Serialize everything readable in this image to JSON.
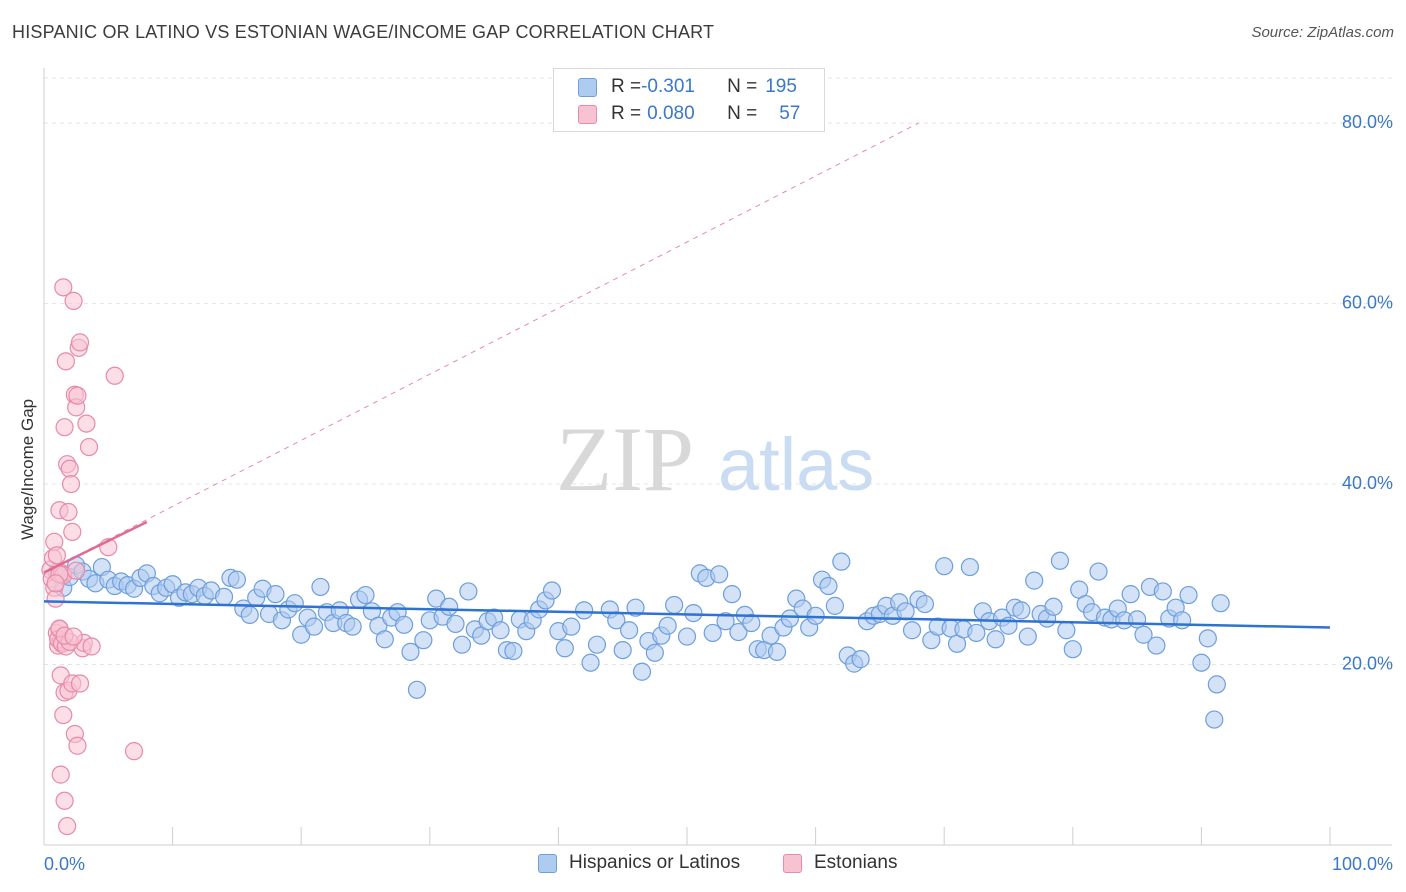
{
  "title": "HISPANIC OR LATINO VS ESTONIAN WAGE/INCOME GAP CORRELATION CHART",
  "source": "Source: ZipAtlas.com",
  "watermark": {
    "zip": "ZIP",
    "atlas": "atlas"
  },
  "legend_top": [
    {
      "r_label": "R = ",
      "r_value": "-0.301",
      "n_label": "N = ",
      "n_value": "195",
      "color": "#aecbf0",
      "border": "#6d9fdc"
    },
    {
      "r_label": "R = ",
      "r_value": "0.080",
      "n_label": "N = ",
      "n_value": "57",
      "color": "#f7c3d2",
      "border": "#e88aa8"
    }
  ],
  "legend_bottom": [
    {
      "label": "Hispanics or Latinos",
      "color": "#aecbf0",
      "border": "#6d9fdc"
    },
    {
      "label": "Estonians",
      "color": "#f7c3d2",
      "border": "#e88aa8"
    }
  ],
  "chart_data": {
    "type": "scatter",
    "title": "HISPANIC OR LATINO VS ESTONIAN WAGE/INCOME GAP CORRELATION CHART",
    "xlabel": "",
    "ylabel": "Wage/Income Gap",
    "xlim": [
      0,
      100
    ],
    "ylim": [
      0,
      85
    ],
    "x_ticks": [
      "0.0%",
      "100.0%"
    ],
    "y_ticks": [
      {
        "value": 20,
        "label": "20.0%"
      },
      {
        "value": 40,
        "label": "40.0%"
      },
      {
        "value": 60,
        "label": "60.0%"
      },
      {
        "value": 80,
        "label": "80.0%"
      }
    ],
    "grid": true,
    "legend_placement": "bottom-center",
    "series": [
      {
        "name": "Hispanics or Latinos",
        "color": "#6d9fdc",
        "fill": "#aecbf0",
        "trend": {
          "x": [
            0,
            100
          ],
          "y": [
            27.0,
            24.1
          ],
          "color": "#2e72d2"
        },
        "points": [
          [
            1,
            30.2
          ],
          [
            1.5,
            28.5
          ],
          [
            2,
            29.7
          ],
          [
            2.5,
            31
          ],
          [
            3,
            30.3
          ],
          [
            3.5,
            29.5
          ],
          [
            4,
            29
          ],
          [
            4.5,
            30.8
          ],
          [
            5,
            29.4
          ],
          [
            5.5,
            28.7
          ],
          [
            6,
            29.2
          ],
          [
            6.5,
            28.8
          ],
          [
            7,
            28.4
          ],
          [
            7.5,
            29.6
          ],
          [
            8,
            30.1
          ],
          [
            8.5,
            28.7
          ],
          [
            9,
            27.9
          ],
          [
            9.5,
            28.5
          ],
          [
            10,
            28.9
          ],
          [
            10.5,
            27.4
          ],
          [
            11,
            28
          ],
          [
            11.5,
            27.8
          ],
          [
            12,
            28.5
          ],
          [
            12.5,
            27.6
          ],
          [
            13,
            28.2
          ],
          [
            14,
            27.5
          ],
          [
            14.5,
            29.6
          ],
          [
            15,
            29.4
          ],
          [
            15.5,
            26.2
          ],
          [
            16,
            25.5
          ],
          [
            16.5,
            27.4
          ],
          [
            17,
            28.4
          ],
          [
            17.5,
            25.6
          ],
          [
            18,
            27.8
          ],
          [
            18.5,
            24.9
          ],
          [
            19,
            26.1
          ],
          [
            19.5,
            26.8
          ],
          [
            20,
            23.3
          ],
          [
            20.5,
            25.2
          ],
          [
            21,
            24.2
          ],
          [
            21.5,
            28.6
          ],
          [
            22,
            25.8
          ],
          [
            22.5,
            24.6
          ],
          [
            23,
            26
          ],
          [
            23.5,
            24.6
          ],
          [
            24,
            24.2
          ],
          [
            24.5,
            27.2
          ],
          [
            25,
            27.7
          ],
          [
            25.5,
            25.9
          ],
          [
            26,
            24.3
          ],
          [
            26.5,
            22.8
          ],
          [
            27,
            25.2
          ],
          [
            27.5,
            25.8
          ],
          [
            28,
            24.4
          ],
          [
            28.5,
            21.4
          ],
          [
            29,
            17.2
          ],
          [
            29.5,
            22.7
          ],
          [
            30,
            24.9
          ],
          [
            30.5,
            27.3
          ],
          [
            31,
            25.3
          ],
          [
            31.5,
            26.4
          ],
          [
            32,
            24.5
          ],
          [
            32.5,
            22.2
          ],
          [
            33,
            28.1
          ],
          [
            33.5,
            23.9
          ],
          [
            34,
            23.2
          ],
          [
            34.5,
            24.8
          ],
          [
            35,
            25.2
          ],
          [
            35.5,
            23.8
          ],
          [
            36,
            21.6
          ],
          [
            36.5,
            21.5
          ],
          [
            37,
            25
          ],
          [
            37.5,
            23.7
          ],
          [
            38,
            24.9
          ],
          [
            38.5,
            26.1
          ],
          [
            39,
            27.1
          ],
          [
            39.5,
            28.2
          ],
          [
            40,
            23.7
          ],
          [
            40.5,
            21.8
          ],
          [
            41,
            24.2
          ],
          [
            42,
            26
          ],
          [
            42.5,
            20.2
          ],
          [
            43,
            22.2
          ],
          [
            44,
            26.1
          ],
          [
            44.5,
            24.9
          ],
          [
            45,
            21.6
          ],
          [
            45.5,
            23.8
          ],
          [
            46,
            26.3
          ],
          [
            46.5,
            19.2
          ],
          [
            47,
            22.6
          ],
          [
            47.5,
            21.3
          ],
          [
            48,
            23.2
          ],
          [
            48.5,
            24.3
          ],
          [
            49,
            26.6
          ],
          [
            50,
            23.1
          ],
          [
            50.5,
            25.7
          ],
          [
            51,
            30.1
          ],
          [
            51.5,
            29.6
          ],
          [
            52,
            23.5
          ],
          [
            52.5,
            30
          ],
          [
            53,
            24.8
          ],
          [
            53.5,
            27.8
          ],
          [
            54,
            23.6
          ],
          [
            54.5,
            25.5
          ],
          [
            55,
            24.6
          ],
          [
            55.5,
            21.7
          ],
          [
            56,
            21.6
          ],
          [
            56.5,
            23.2
          ],
          [
            57,
            21.4
          ],
          [
            57.5,
            24.1
          ],
          [
            58,
            25.1
          ],
          [
            58.5,
            27.3
          ],
          [
            59,
            26.2
          ],
          [
            59.5,
            24.1
          ],
          [
            60,
            25.4
          ],
          [
            60.5,
            29.4
          ],
          [
            61,
            28.7
          ],
          [
            61.5,
            26.5
          ],
          [
            62,
            31.4
          ],
          [
            62.5,
            21
          ],
          [
            63,
            20.1
          ],
          [
            63.5,
            20.6
          ],
          [
            64,
            24.8
          ],
          [
            64.5,
            25.4
          ],
          [
            65,
            25.6
          ],
          [
            65.5,
            26.5
          ],
          [
            66,
            25.4
          ],
          [
            66.5,
            26.9
          ],
          [
            67,
            25.9
          ],
          [
            67.5,
            23.8
          ],
          [
            68,
            27.2
          ],
          [
            68.5,
            26.7
          ],
          [
            69,
            22.7
          ],
          [
            69.5,
            24.2
          ],
          [
            70,
            30.9
          ],
          [
            70.5,
            24
          ],
          [
            71,
            22.3
          ],
          [
            71.5,
            23.9
          ],
          [
            72,
            30.8
          ],
          [
            72.5,
            23.5
          ],
          [
            73,
            25.9
          ],
          [
            73.5,
            24.8
          ],
          [
            74,
            22.8
          ],
          [
            74.5,
            25.2
          ],
          [
            75,
            24.3
          ],
          [
            75.5,
            26.3
          ],
          [
            76,
            26
          ],
          [
            76.5,
            23.1
          ],
          [
            77,
            29.3
          ],
          [
            77.5,
            25.6
          ],
          [
            78,
            25.1
          ],
          [
            78.5,
            26.4
          ],
          [
            79,
            31.5
          ],
          [
            79.5,
            23.8
          ],
          [
            80,
            21.7
          ],
          [
            80.5,
            28.3
          ],
          [
            81,
            26.7
          ],
          [
            81.5,
            25.8
          ],
          [
            82,
            30.3
          ],
          [
            82.5,
            25.2
          ],
          [
            83,
            25
          ],
          [
            83.5,
            26.2
          ],
          [
            84,
            24.9
          ],
          [
            84.5,
            27.8
          ],
          [
            85,
            25
          ],
          [
            85.5,
            23.3
          ],
          [
            86,
            28.6
          ],
          [
            86.5,
            22.1
          ],
          [
            87,
            28.1
          ],
          [
            87.5,
            25.1
          ],
          [
            88,
            26.3
          ],
          [
            88.5,
            24.9
          ],
          [
            89,
            27.7
          ],
          [
            90,
            20.2
          ],
          [
            90.5,
            22.9
          ],
          [
            91,
            13.9
          ],
          [
            91.2,
            17.8
          ],
          [
            91.5,
            26.8
          ]
        ]
      },
      {
        "name": "Estonians",
        "color": "#e88aa8",
        "fill": "#f7c3d2",
        "trend": {
          "x": [
            0,
            8
          ],
          "y": [
            30.2,
            35.8
          ],
          "color": "#e06a93"
        },
        "trend_extended": {
          "x": [
            0,
            68
          ],
          "y": [
            30.2,
            80
          ],
          "color": "#e88aa8"
        },
        "points": [
          [
            0.5,
            30.5
          ],
          [
            0.6,
            29.5
          ],
          [
            0.7,
            31.8
          ],
          [
            0.8,
            28.5
          ],
          [
            0.9,
            27.3
          ],
          [
            1,
            23.5
          ],
          [
            1.1,
            22.1
          ],
          [
            1.2,
            23.9
          ],
          [
            1.3,
            22.5
          ],
          [
            1.4,
            30.1
          ],
          [
            1.5,
            29.9
          ],
          [
            0.8,
            33.6
          ],
          [
            1,
            32.1
          ],
          [
            1.2,
            37.1
          ],
          [
            1.5,
            61.8
          ],
          [
            1.6,
            46.3
          ],
          [
            1.7,
            53.6
          ],
          [
            1.8,
            42.2
          ],
          [
            1.9,
            36.9
          ],
          [
            2,
            41.7
          ],
          [
            2.1,
            40
          ],
          [
            2.2,
            34.7
          ],
          [
            2.3,
            60.3
          ],
          [
            2.4,
            49.9
          ],
          [
            2.5,
            48.5
          ],
          [
            2.6,
            49.8
          ],
          [
            2.7,
            55.1
          ],
          [
            2.8,
            55.7
          ],
          [
            3,
            21.8
          ],
          [
            3.1,
            22.4
          ],
          [
            3.3,
            46.7
          ],
          [
            3.5,
            44.1
          ],
          [
            3.7,
            22
          ],
          [
            1.3,
            18.8
          ],
          [
            1.6,
            16.9
          ],
          [
            1.9,
            17.1
          ],
          [
            2.2,
            17.9
          ],
          [
            2.4,
            12.3
          ],
          [
            2.6,
            11
          ],
          [
            2.8,
            17.9
          ],
          [
            1.5,
            14.4
          ],
          [
            1.3,
            7.8
          ],
          [
            1.6,
            4.9
          ],
          [
            1.8,
            2.1
          ],
          [
            2.5,
            30.4
          ],
          [
            1.2,
            30
          ],
          [
            0.9,
            29
          ],
          [
            1.1,
            22.8
          ],
          [
            1.4,
            22.3
          ],
          [
            1.7,
            22
          ],
          [
            2,
            22.5
          ],
          [
            5,
            33
          ],
          [
            7,
            10.4
          ],
          [
            5.5,
            52
          ],
          [
            1.2,
            24
          ],
          [
            1.6,
            23.2
          ],
          [
            2.3,
            23.1
          ]
        ]
      }
    ]
  }
}
